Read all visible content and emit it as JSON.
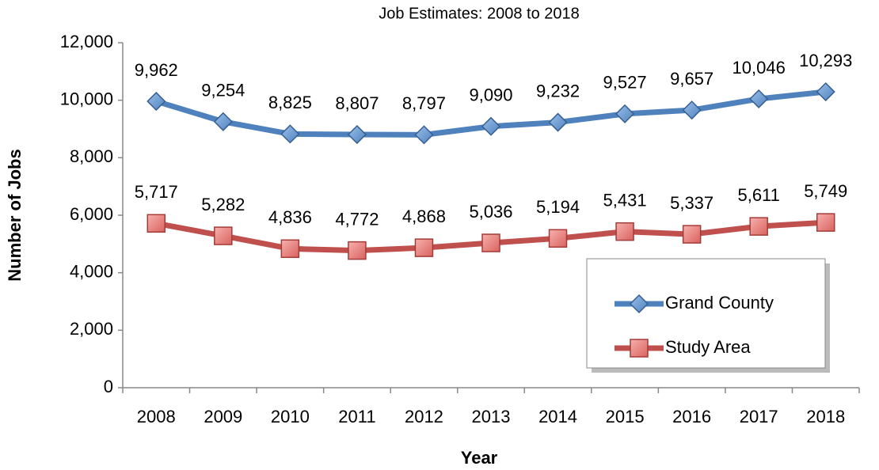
{
  "chart_data": {
    "type": "line",
    "title": "Job Estimates:  2008 to 2018",
    "x_label": "Year",
    "y_label": "Number of Jobs",
    "categories": [
      "2008",
      "2009",
      "2010",
      "2011",
      "2012",
      "2013",
      "2014",
      "2015",
      "2016",
      "2017",
      "2018"
    ],
    "series": [
      {
        "name": "Grand County",
        "color": "#4f81bd",
        "marker": "diamond",
        "values": [
          9962,
          9254,
          8825,
          8807,
          8797,
          9090,
          9232,
          9527,
          9657,
          10046,
          10293
        ],
        "value_labels": [
          "9,962",
          "9,254",
          "8,825",
          "8,807",
          "8,797",
          "9,090",
          "9,232",
          "9,527",
          "9,657",
          "10,046",
          "10,293"
        ]
      },
      {
        "name": "Study Area",
        "color": "#c0504d",
        "marker": "square",
        "values": [
          5717,
          5282,
          4836,
          4772,
          4868,
          5036,
          5194,
          5431,
          5337,
          5611,
          5749
        ],
        "value_labels": [
          "5,717",
          "5,282",
          "4,836",
          "4,772",
          "4,868",
          "5,036",
          "5,194",
          "5,431",
          "5,337",
          "5,611",
          "5,749"
        ]
      }
    ],
    "ylim": [
      0,
      12000
    ],
    "yticks": [
      0,
      {
        "value": 2000,
        "label": "2,000"
      },
      {
        "value": 4000,
        "label": "4,000"
      },
      {
        "value": 6000,
        "label": "6,000"
      },
      {
        "value": 8000,
        "label": "8,000"
      },
      {
        "value": 10000,
        "label": "10,000"
      },
      {
        "value": 12000,
        "label": "12,000"
      }
    ],
    "grid": false,
    "legend": "lower right"
  }
}
